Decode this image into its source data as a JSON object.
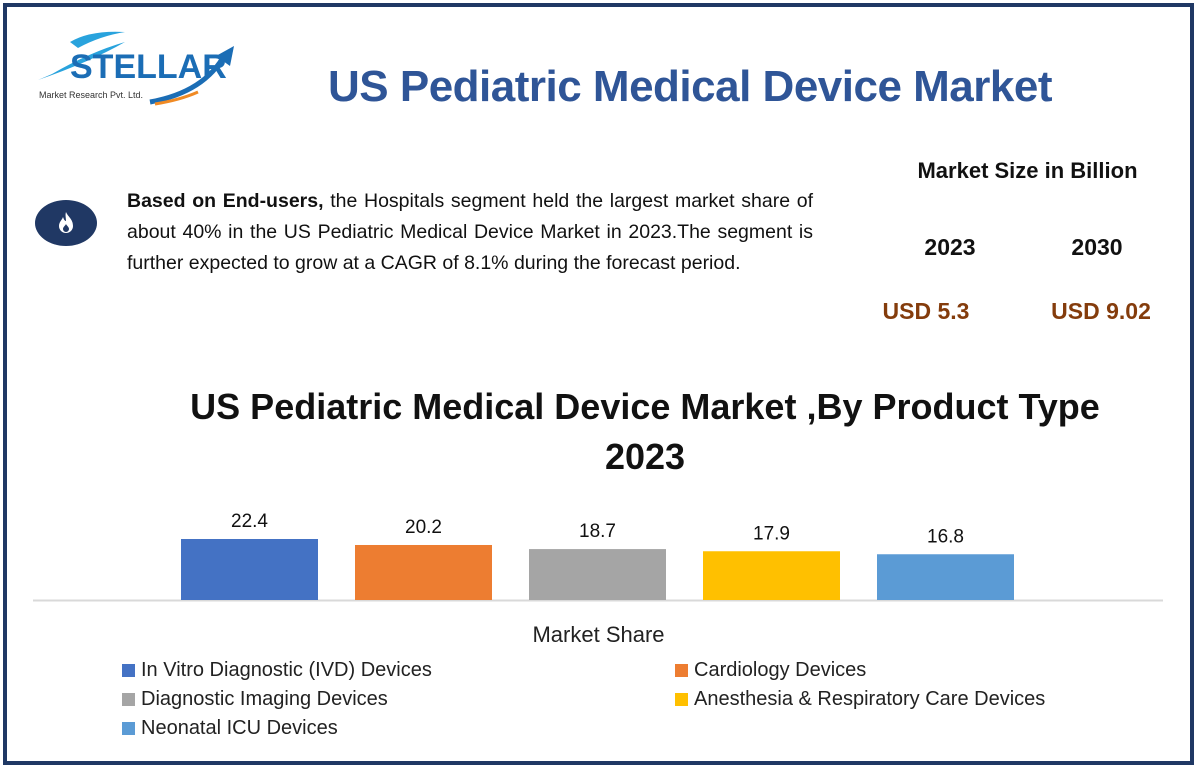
{
  "logo": {
    "brand": "STELLAR",
    "subtitle": "Market Research Pvt. Ltd."
  },
  "header": {
    "title": "US Pediatric Medical Device Market"
  },
  "summary": {
    "icon": "fire-icon",
    "bold_lead": "Based on End-users,",
    "text": " the Hospitals segment held the largest market share of about 40% in the US Pediatric Medical Device Market in 2023.The segment is further expected to grow at a CAGR of 8.1% during the forecast period."
  },
  "market_size": {
    "title": "Market Size in Billion",
    "years": [
      "2023",
      "2030"
    ],
    "values": [
      "USD 5.3",
      "USD 9.02"
    ]
  },
  "colors": {
    "frame": "#1f3864",
    "title": "#2f5597",
    "value": "#843c0c"
  },
  "chart_data": {
    "type": "bar",
    "title": "US Pediatric Medical Device Market ,By Product Type 2023",
    "xlabel": "Market Share",
    "ylabel": "",
    "categories": [
      "In Vitro Diagnostic (IVD) Devices",
      "Cardiology Devices",
      "Diagnostic Imaging Devices",
      "Anesthesia & Respiratory Care Devices",
      "Neonatal ICU Devices"
    ],
    "values": [
      22.4,
      20.2,
      18.7,
      17.9,
      16.8
    ],
    "data_labels": [
      "22.4",
      "20.2",
      "18.7",
      "17.9",
      "16.8"
    ],
    "colors": [
      "#4472c4",
      "#ed7d31",
      "#a5a5a5",
      "#ffc000",
      "#5b9bd5"
    ],
    "ylim": [
      0,
      22.4
    ],
    "grid": false,
    "legend": "bottom"
  }
}
